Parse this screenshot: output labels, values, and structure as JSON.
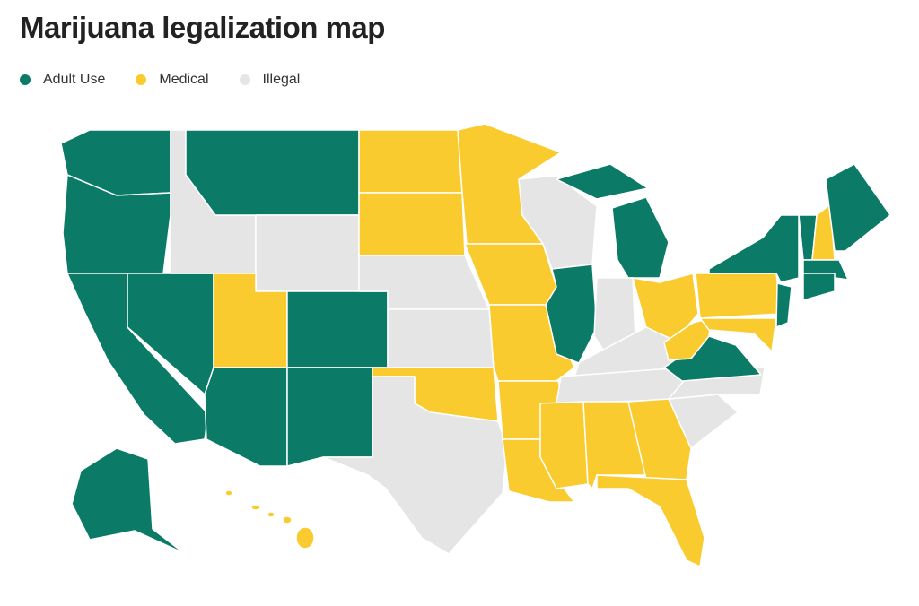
{
  "title": "Marijuana legalization map",
  "legend": [
    {
      "label": "Adult Use",
      "color": "#0b7b67"
    },
    {
      "label": "Medical",
      "color": "#f9cb2e"
    },
    {
      "label": "Illegal",
      "color": "#e5e5e5"
    }
  ]
}
